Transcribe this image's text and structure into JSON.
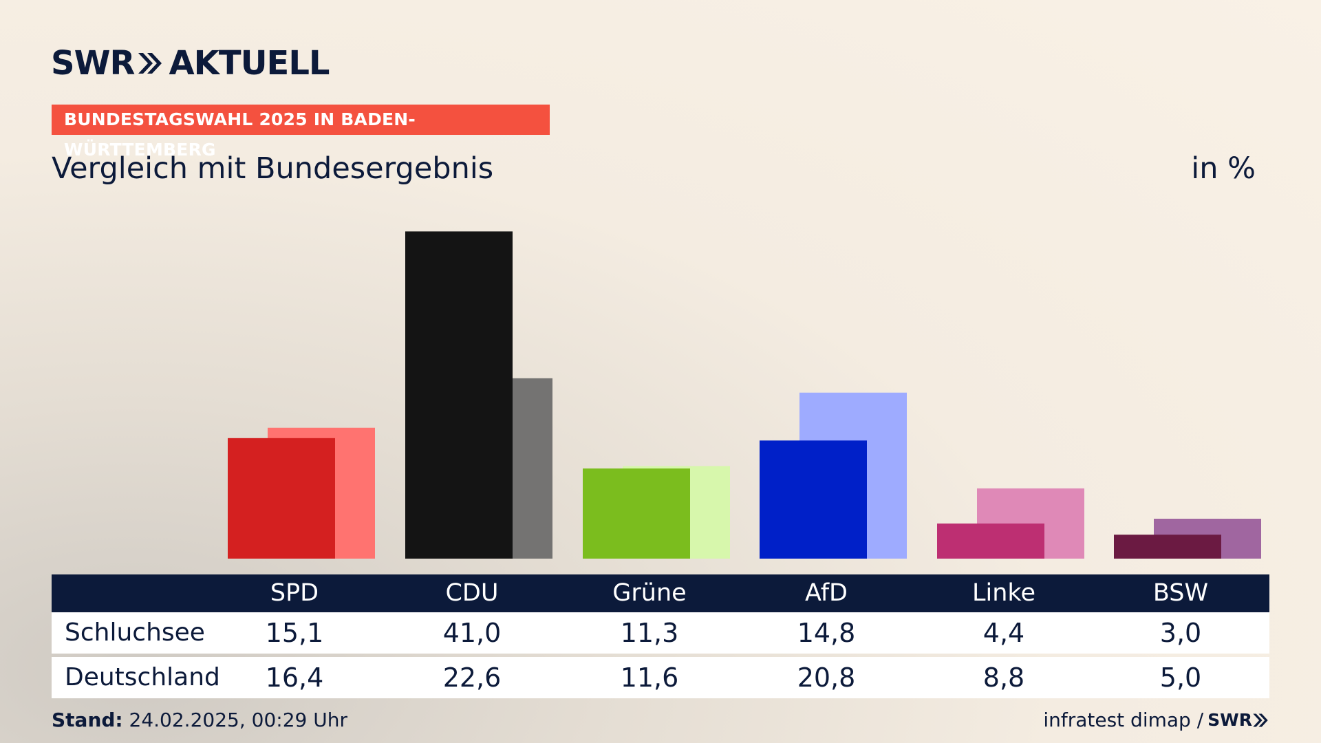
{
  "brand": {
    "logo_left": "SWR",
    "logo_right": "AKTUELL"
  },
  "header": {
    "tag": "BUNDESTAGSWAHL 2025 IN BADEN-WÜRTTEMBERG",
    "subtitle": "Vergleich mit Bundesergebnis",
    "unit": "in %"
  },
  "chart_data": {
    "type": "bar",
    "categories": [
      "SPD",
      "CDU",
      "Grüne",
      "AfD",
      "Linke",
      "BSW"
    ],
    "series": [
      {
        "name": "Schluchsee",
        "values": [
          15.1,
          41.0,
          11.3,
          14.8,
          4.4,
          3.0
        ],
        "colors": [
          "#d42020",
          "#141414",
          "#7bbd1e",
          "#0020c8",
          "#bd2f72",
          "#6b1a42"
        ]
      },
      {
        "name": "Deutschland",
        "values": [
          16.4,
          22.6,
          11.6,
          20.8,
          8.8,
          5.0
        ],
        "colors": [
          "#ff7370",
          "#747372",
          "#d7f7ac",
          "#9eabff",
          "#df89b7",
          "#a066a0"
        ]
      }
    ],
    "table": {
      "header": [
        "SPD",
        "CDU",
        "Grüne",
        "AfD",
        "Linke",
        "BSW"
      ],
      "rows": [
        {
          "label": "Schluchsee",
          "values": [
            "15,1",
            "41,0",
            "11,3",
            "14,8",
            "4,4",
            "3,0"
          ]
        },
        {
          "label": "Deutschland",
          "values": [
            "16,4",
            "22,6",
            "11,6",
            "20,8",
            "8,8",
            "5,0"
          ]
        }
      ]
    },
    "grid": false
  },
  "footer": {
    "stand_label": "Stand:",
    "stand_value": " 24.02.2025, 00:29 Uhr",
    "source": "infratest dimap /",
    "source_logo": "SWR"
  }
}
